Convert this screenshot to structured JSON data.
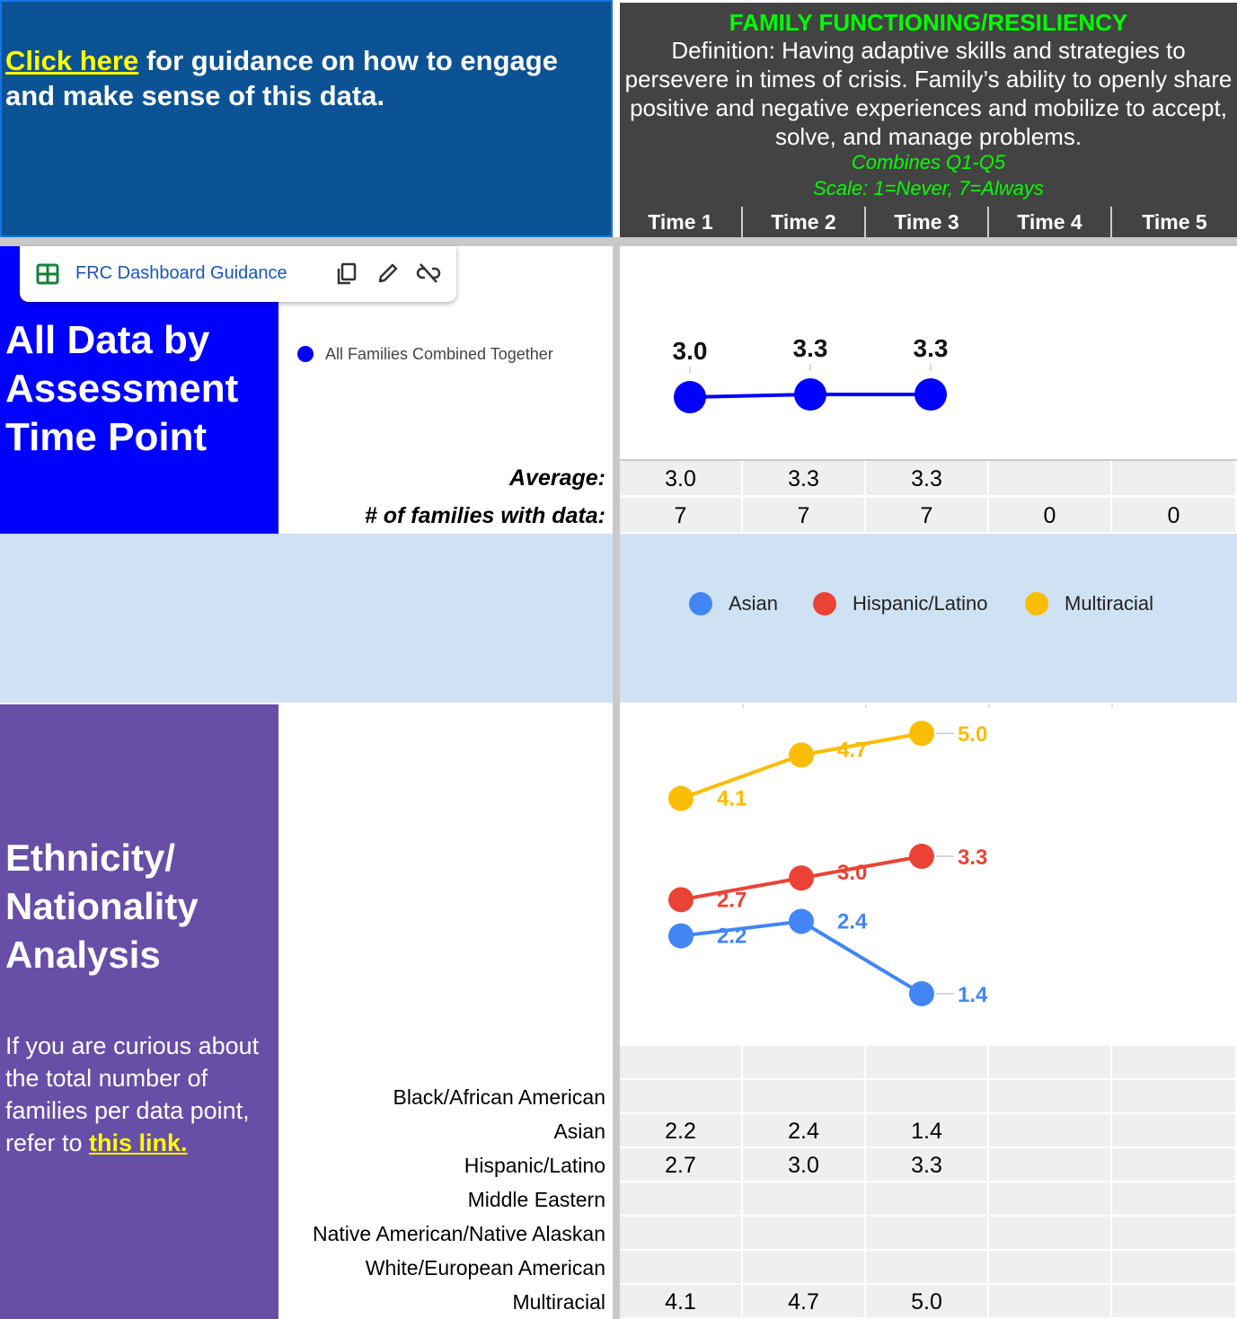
{
  "header": {
    "guidance_link": "Click here",
    "guidance_rest": " for guidance on how to engage and make sense of this data.",
    "domain_title": "FAMILY FUNCTIONING/RESILIENCY",
    "definition": "Definition: Having adaptive skills and strategies to persevere in times of crisis. Family’s ability to openly share positive and negative experiences and mobilize to accept, solve, and manage problems.",
    "combines": "Combines Q1-Q5",
    "scale": "Scale: 1=Never, 7=Always",
    "time_points": [
      "Time 1",
      "Time 2",
      "Time 3",
      "Time 4",
      "Time 5"
    ]
  },
  "chip": {
    "label": "FRC Dashboard Guidance",
    "icons": [
      "sheets-icon",
      "copy-icon",
      "edit-pencil-icon",
      "unlink-icon"
    ]
  },
  "section_all": {
    "title": "All Data by Assessment Time Point",
    "title_lines": [
      "All Data by",
      "Assessment",
      "Time Point"
    ],
    "legend_label": "All Families Combined Together",
    "average_label": "Average:",
    "families_label": "# of families with data:",
    "averages": [
      "3.0",
      "3.3",
      "3.3",
      "",
      ""
    ],
    "families": [
      "7",
      "7",
      "7",
      "0",
      "0"
    ]
  },
  "section_ethnicity": {
    "title_lines": [
      "Ethnicity/",
      "Nationality",
      "Analysis"
    ],
    "note_text": "If you are curious about the total number of families per data point, refer to ",
    "note_link": "this link.",
    "legend": [
      {
        "name": "Asian",
        "color": "#4285f4"
      },
      {
        "name": "Hispanic/Latino",
        "color": "#ea4335"
      },
      {
        "name": "Multiracial",
        "color": "#fbbc04"
      }
    ],
    "rows": [
      {
        "label": "Black/African American",
        "values": [
          "",
          "",
          "",
          "",
          ""
        ]
      },
      {
        "label": "Asian",
        "values": [
          "2.2",
          "2.4",
          "1.4",
          "",
          ""
        ]
      },
      {
        "label": "Hispanic/Latino",
        "values": [
          "2.7",
          "3.0",
          "3.3",
          "",
          ""
        ]
      },
      {
        "label": "Middle Eastern",
        "values": [
          "",
          "",
          "",
          "",
          ""
        ]
      },
      {
        "label": "Native American/Native Alaskan",
        "values": [
          "",
          "",
          "",
          "",
          ""
        ]
      },
      {
        "label": "White/European American",
        "values": [
          "",
          "",
          "",
          "",
          ""
        ]
      },
      {
        "label": "Multiracial",
        "values": [
          "4.1",
          "4.7",
          "5.0",
          "",
          ""
        ]
      }
    ]
  },
  "chart_data": [
    {
      "type": "line",
      "categories": [
        "Time 1",
        "Time 2",
        "Time 3"
      ],
      "series": [
        {
          "name": "All Families Combined Together",
          "color": "#0000ff",
          "values": [
            3.0,
            3.3,
            3.3
          ],
          "labels": [
            "3.0",
            "3.3",
            "3.3"
          ]
        }
      ],
      "title": "",
      "xlabel": "",
      "ylabel": ""
    },
    {
      "type": "line",
      "categories": [
        "Time 1",
        "Time 2",
        "Time 3"
      ],
      "series": [
        {
          "name": "Asian",
          "color": "#4285f4",
          "values": [
            2.2,
            2.4,
            1.4
          ],
          "labels": [
            "2.2",
            "2.4",
            "1.4"
          ]
        },
        {
          "name": "Hispanic/Latino",
          "color": "#ea4335",
          "values": [
            2.7,
            3.0,
            3.3
          ],
          "labels": [
            "2.7",
            "3.0",
            "3.3"
          ]
        },
        {
          "name": "Multiracial",
          "color": "#fbbc04",
          "values": [
            4.1,
            4.7,
            5.0
          ],
          "labels": [
            "4.1",
            "4.7",
            "5.0"
          ]
        }
      ],
      "title": "",
      "xlabel": "",
      "ylabel": ""
    }
  ]
}
